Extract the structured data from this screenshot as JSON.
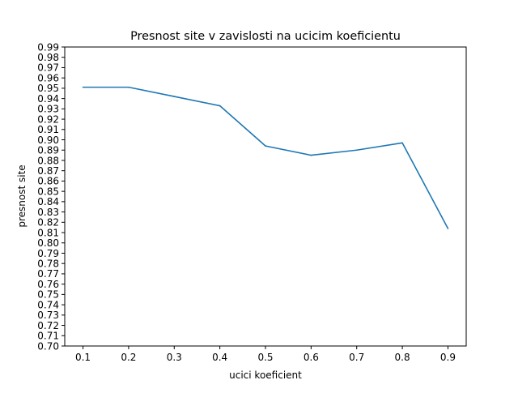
{
  "chart_data": {
    "type": "line",
    "title": "Presnost site v zavislosti na ucicim koeficientu",
    "xlabel": "ucici koeficient",
    "ylabel": "presnost site",
    "xlim": [
      0.06,
      0.94
    ],
    "ylim": [
      0.7,
      0.99
    ],
    "x_ticks": [
      "0.1",
      "0.2",
      "0.3",
      "0.4",
      "0.5",
      "0.6",
      "0.7",
      "0.8",
      "0.9"
    ],
    "y_ticks": [
      "0.70",
      "0.71",
      "0.72",
      "0.73",
      "0.74",
      "0.75",
      "0.76",
      "0.77",
      "0.78",
      "0.79",
      "0.80",
      "0.81",
      "0.82",
      "0.83",
      "0.84",
      "0.85",
      "0.86",
      "0.87",
      "0.88",
      "0.89",
      "0.90",
      "0.91",
      "0.92",
      "0.93",
      "0.94",
      "0.95",
      "0.96",
      "0.97",
      "0.98",
      "0.99"
    ],
    "grid": false,
    "series": [
      {
        "x": [
          0.1,
          0.2,
          0.3,
          0.4,
          0.5,
          0.6,
          0.7,
          0.8,
          0.9
        ],
        "y": [
          0.951,
          0.951,
          0.942,
          0.933,
          0.894,
          0.885,
          0.89,
          0.897,
          0.814
        ],
        "color": "#1f77b4"
      }
    ]
  }
}
